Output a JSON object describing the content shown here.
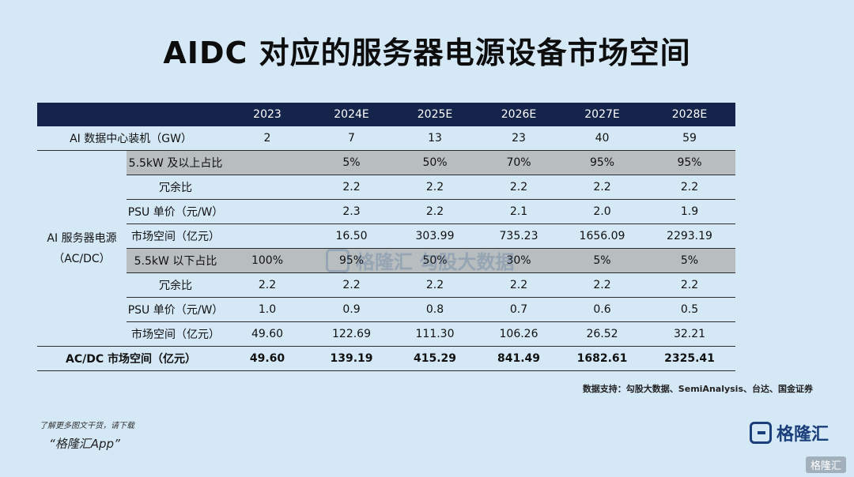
{
  "title": "AIDC 对应的服务器电源设备市场空间",
  "table": {
    "headers": [
      "",
      "2023",
      "2024E",
      "2025E",
      "2026E",
      "2027E",
      "2028E"
    ],
    "installed": {
      "label": "AI 数据中心装机（GW）",
      "values": [
        "2",
        "7",
        "13",
        "23",
        "40",
        "59"
      ]
    },
    "group_label": "AI 服务器电源\n（AC/DC）",
    "rows": [
      {
        "label": "5.5kW 及以上占比",
        "values": [
          "",
          "5%",
          "50%",
          "70%",
          "95%",
          "95%"
        ]
      },
      {
        "label": "冗余比",
        "values": [
          "",
          "2.2",
          "2.2",
          "2.2",
          "2.2",
          "2.2"
        ]
      },
      {
        "label": "PSU 单价（元/W）",
        "values": [
          "",
          "2.3",
          "2.2",
          "2.1",
          "2.0",
          "1.9"
        ]
      },
      {
        "label": "市场空间（亿元）",
        "values": [
          "",
          "16.50",
          "303.99",
          "735.23",
          "1656.09",
          "2293.19"
        ]
      },
      {
        "label": "5.5kW 以下占比",
        "values": [
          "100%",
          "95%",
          "50%",
          "30%",
          "5%",
          "5%"
        ]
      },
      {
        "label": "冗余比",
        "values": [
          "2.2",
          "2.2",
          "2.2",
          "2.2",
          "2.2",
          "2.2"
        ]
      },
      {
        "label": "PSU 单价（元/W）",
        "values": [
          "1.0",
          "0.9",
          "0.8",
          "0.7",
          "0.6",
          "0.5"
        ]
      },
      {
        "label": "市场空间（亿元）",
        "values": [
          "49.60",
          "122.69",
          "111.30",
          "106.26",
          "26.52",
          "32.21"
        ]
      }
    ],
    "total": {
      "label": "AC/DC 市场空间（亿元）",
      "values": [
        "49.60",
        "139.19",
        "415.29",
        "841.49",
        "1682.61",
        "2325.41"
      ]
    }
  },
  "source": "数据支持：勾股大数据、SemiAnalysis、台达、国金证券",
  "footnote": "了解更多图文干货，请下载",
  "app_name": "“格隆汇App”",
  "brand": "格隆汇",
  "corner_tag": "格隆汇",
  "watermark": "格隆汇  勾股大数据",
  "colors": {
    "background": "#d5e8f6",
    "header": "#14244b",
    "gray_row": "#b8bdbf",
    "brand": "#1a3f7a"
  }
}
